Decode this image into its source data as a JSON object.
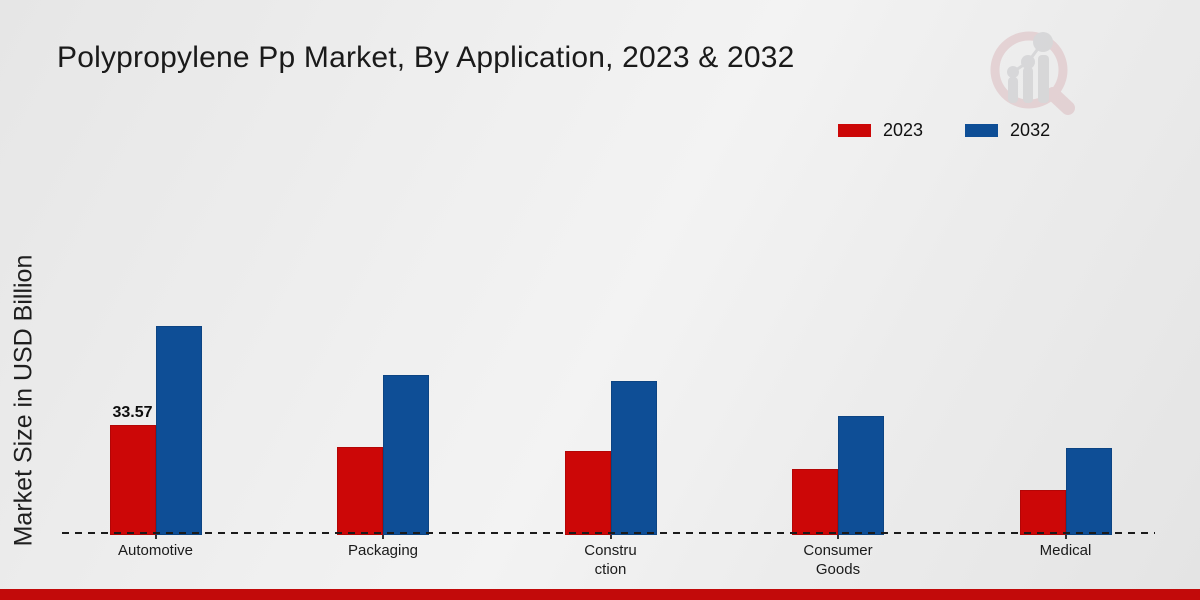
{
  "page": {
    "title": "Polypropylene Pp Market, By Application, 2023 & 2032",
    "ylabel": "Market Size in USD Billion",
    "footer_color": "#c20a0a"
  },
  "legend": {
    "items": [
      {
        "label": "2023",
        "color": "#cc0707"
      },
      {
        "label": "2032",
        "color": "#0e4e96"
      }
    ]
  },
  "watermark_icon": "magnifier-bar-chart-logo",
  "chart_data": {
    "type": "bar",
    "title": "Polypropylene Pp Market, By Application, 2023 & 2032",
    "xlabel": "",
    "ylabel": "Market Size in USD Billion",
    "categories": [
      "Automotive",
      "Packaging",
      "Construction",
      "Consumer Goods",
      "Medical"
    ],
    "category_label_lines": [
      [
        "Automotive"
      ],
      [
        "Packaging"
      ],
      [
        "Constru",
        "ction"
      ],
      [
        "Consumer",
        "Goods"
      ],
      [
        "Medical"
      ]
    ],
    "series": [
      {
        "name": "2023",
        "color": "#cc0707",
        "values": [
          33.57,
          26.9,
          25.6,
          20.1,
          13.7
        ]
      },
      {
        "name": "2032",
        "color": "#0e4e96",
        "values": [
          63.8,
          48.8,
          47.0,
          36.3,
          26.6
        ]
      }
    ],
    "data_labels": [
      {
        "series": 0,
        "category": 0,
        "text": "33.57"
      }
    ],
    "ylim": [
      0,
      70
    ],
    "grid": false,
    "axis_style": "dashed-baseline-only",
    "legend_position": "top-right"
  }
}
